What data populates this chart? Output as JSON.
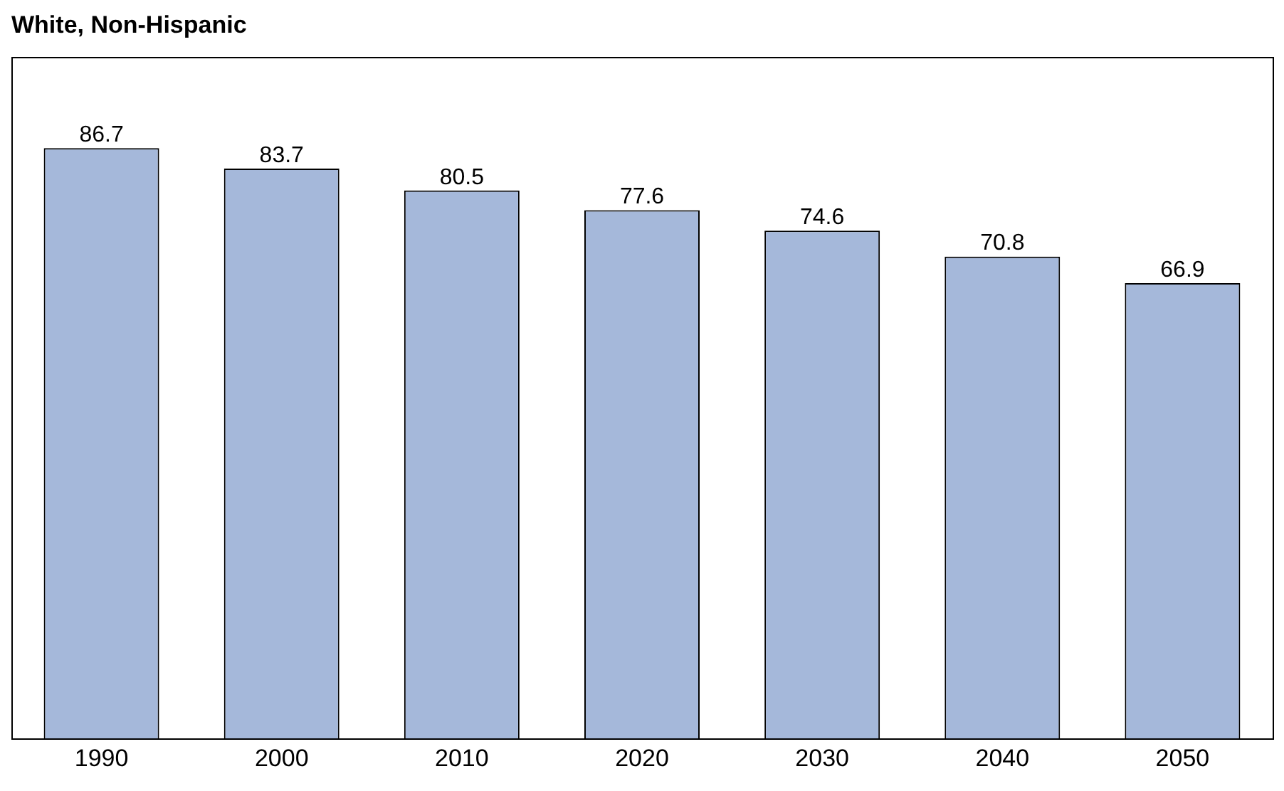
{
  "chart_data": {
    "type": "bar",
    "title": "White, Non-Hispanic",
    "categories": [
      "1990",
      "2000",
      "2010",
      "2020",
      "2030",
      "2040",
      "2050"
    ],
    "values": [
      86.7,
      83.7,
      80.5,
      77.6,
      74.6,
      70.8,
      66.9
    ],
    "color": "#a5b8da",
    "ylim": [
      0,
      100
    ],
    "tick_labels": "x",
    "data_labels": true,
    "grid": false,
    "legend": false
  }
}
